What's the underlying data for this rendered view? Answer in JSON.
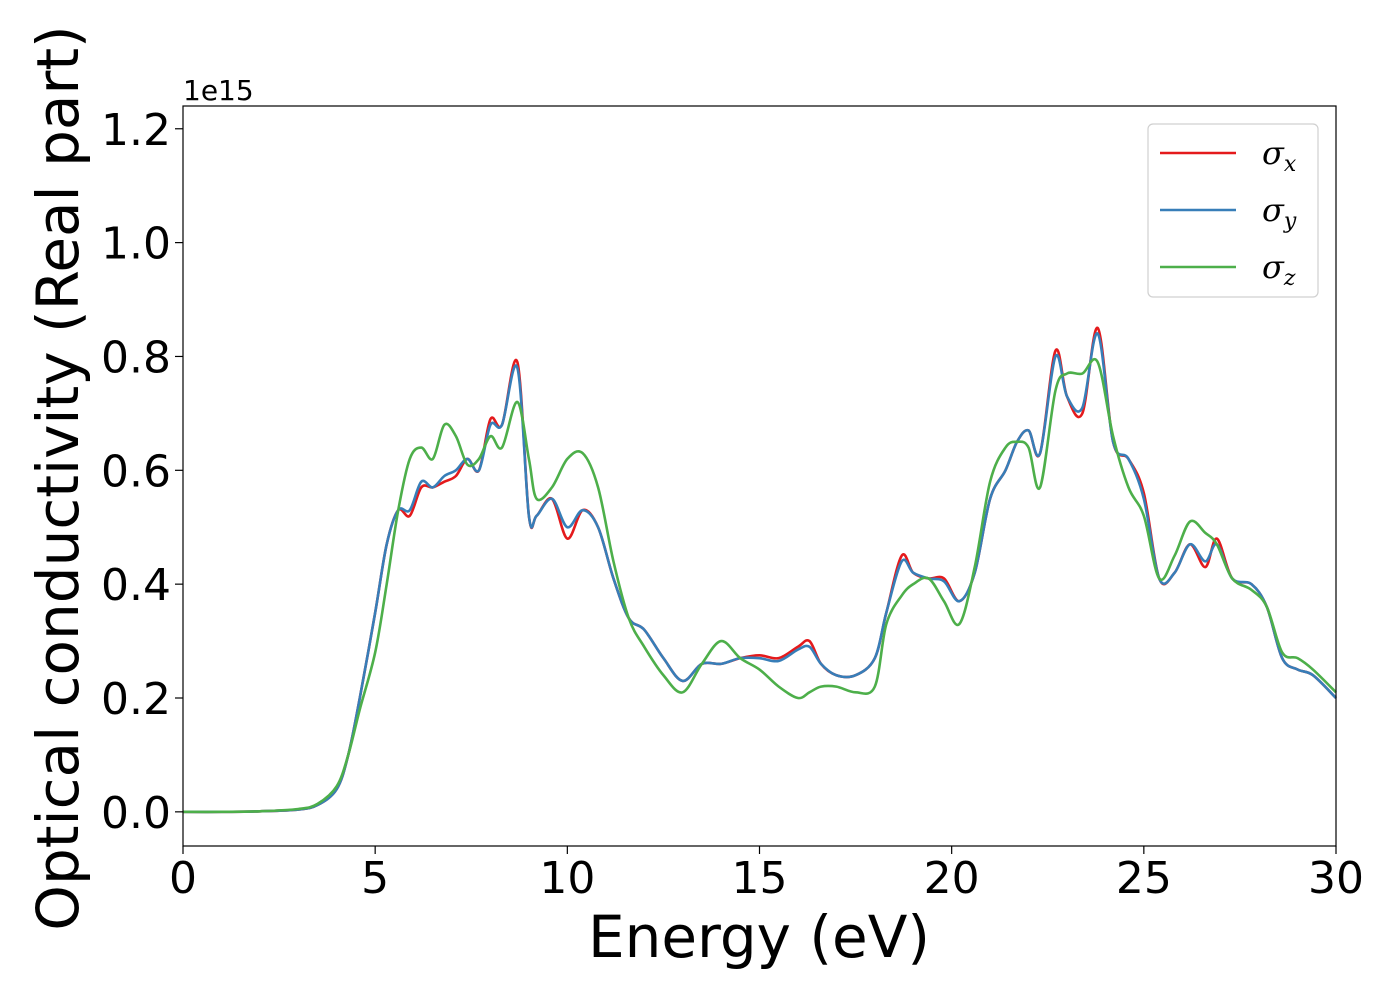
{
  "chart_data": {
    "type": "line",
    "title": "",
    "xlabel": "Energy (eV)",
    "ylabel": "Optical conductivity (Real part)",
    "y_offset_label": "1e15",
    "xlim": [
      0,
      30
    ],
    "ylim": [
      -0.06,
      1.24
    ],
    "x_ticks": [
      0,
      5,
      10,
      15,
      20,
      25,
      30
    ],
    "x_tick_labels": [
      "0",
      "5",
      "10",
      "15",
      "20",
      "25",
      "30"
    ],
    "y_ticks": [
      0.0,
      0.2,
      0.4,
      0.6,
      0.8,
      1.0,
      1.2
    ],
    "y_tick_labels": [
      "0.0",
      "0.2",
      "0.4",
      "0.6",
      "0.8",
      "1.0",
      "1.2"
    ],
    "grid": false,
    "legend_position": "top-right",
    "series": [
      {
        "name": "σx",
        "color": "#e41a1c",
        "x": [
          0,
          1,
          2,
          3,
          3.5,
          4,
          4.3,
          4.6,
          5,
          5.3,
          5.6,
          5.9,
          6.2,
          6.5,
          6.8,
          7.1,
          7.4,
          7.7,
          8.0,
          8.3,
          8.7,
          9.0,
          9.2,
          9.6,
          10.0,
          10.4,
          10.8,
          11.2,
          11.6,
          12.0,
          12.5,
          13.0,
          13.5,
          14.0,
          14.5,
          15.0,
          15.5,
          16.0,
          16.3,
          16.6,
          17.0,
          17.5,
          18.0,
          18.3,
          18.7,
          19.0,
          19.4,
          19.8,
          20.2,
          20.6,
          21.0,
          21.4,
          21.7,
          22.0,
          22.3,
          22.7,
          23.0,
          23.4,
          23.8,
          24.2,
          24.6,
          25.0,
          25.4,
          25.8,
          26.2,
          26.6,
          26.9,
          27.3,
          27.8,
          28.2,
          28.6,
          29.0,
          29.4,
          30.0
        ],
        "y": [
          0,
          0,
          0.001,
          0.004,
          0.012,
          0.04,
          0.1,
          0.2,
          0.35,
          0.47,
          0.53,
          0.52,
          0.57,
          0.57,
          0.58,
          0.59,
          0.62,
          0.6,
          0.69,
          0.68,
          0.79,
          0.52,
          0.52,
          0.55,
          0.48,
          0.53,
          0.5,
          0.41,
          0.34,
          0.32,
          0.27,
          0.23,
          0.26,
          0.26,
          0.27,
          0.275,
          0.27,
          0.29,
          0.3,
          0.26,
          0.24,
          0.24,
          0.27,
          0.35,
          0.45,
          0.42,
          0.41,
          0.41,
          0.37,
          0.42,
          0.55,
          0.6,
          0.65,
          0.67,
          0.63,
          0.81,
          0.73,
          0.7,
          0.85,
          0.65,
          0.62,
          0.56,
          0.41,
          0.42,
          0.47,
          0.43,
          0.48,
          0.41,
          0.4,
          0.36,
          0.27,
          0.25,
          0.24,
          0.2
        ]
      },
      {
        "name": "σy",
        "color": "#377eb8",
        "x": [
          0,
          1,
          2,
          3,
          3.5,
          4,
          4.3,
          4.6,
          5,
          5.3,
          5.6,
          5.9,
          6.2,
          6.5,
          6.8,
          7.1,
          7.4,
          7.7,
          8.0,
          8.3,
          8.7,
          9.0,
          9.2,
          9.6,
          10.0,
          10.4,
          10.8,
          11.2,
          11.6,
          12.0,
          12.5,
          13.0,
          13.5,
          14.0,
          14.5,
          15.0,
          15.5,
          16.0,
          16.3,
          16.6,
          17.0,
          17.5,
          18.0,
          18.3,
          18.7,
          19.0,
          19.4,
          19.8,
          20.2,
          20.6,
          21.0,
          21.4,
          21.7,
          22.0,
          22.3,
          22.7,
          23.0,
          23.4,
          23.8,
          24.2,
          24.6,
          25.0,
          25.4,
          25.8,
          26.2,
          26.6,
          26.9,
          27.3,
          27.8,
          28.2,
          28.6,
          29.0,
          29.4,
          30.0
        ],
        "y": [
          0,
          0,
          0.001,
          0.004,
          0.012,
          0.04,
          0.1,
          0.2,
          0.35,
          0.47,
          0.53,
          0.53,
          0.58,
          0.57,
          0.59,
          0.6,
          0.62,
          0.6,
          0.68,
          0.68,
          0.78,
          0.52,
          0.52,
          0.55,
          0.5,
          0.53,
          0.5,
          0.41,
          0.34,
          0.32,
          0.27,
          0.23,
          0.26,
          0.26,
          0.27,
          0.27,
          0.265,
          0.285,
          0.29,
          0.26,
          0.24,
          0.24,
          0.27,
          0.35,
          0.44,
          0.42,
          0.41,
          0.405,
          0.37,
          0.42,
          0.55,
          0.6,
          0.65,
          0.67,
          0.63,
          0.8,
          0.73,
          0.71,
          0.84,
          0.65,
          0.62,
          0.55,
          0.41,
          0.42,
          0.47,
          0.44,
          0.47,
          0.41,
          0.4,
          0.36,
          0.27,
          0.25,
          0.24,
          0.2
        ]
      },
      {
        "name": "σz",
        "color": "#4daf4a",
        "x": [
          0,
          1,
          2,
          3,
          3.5,
          4,
          4.3,
          4.6,
          5,
          5.3,
          5.6,
          5.9,
          6.2,
          6.5,
          6.8,
          7.1,
          7.4,
          7.7,
          8.0,
          8.3,
          8.7,
          9.0,
          9.2,
          9.6,
          10.0,
          10.4,
          10.8,
          11.2,
          11.6,
          12.0,
          12.5,
          13.0,
          13.5,
          14.0,
          14.5,
          15.0,
          15.5,
          16.0,
          16.3,
          16.6,
          17.0,
          17.5,
          18.0,
          18.3,
          18.7,
          19.0,
          19.4,
          19.8,
          20.2,
          20.6,
          21.0,
          21.4,
          21.7,
          22.0,
          22.3,
          22.7,
          23.0,
          23.4,
          23.8,
          24.2,
          24.6,
          25.0,
          25.4,
          25.8,
          26.2,
          26.6,
          26.9,
          27.3,
          27.8,
          28.2,
          28.6,
          29.0,
          29.4,
          30.0
        ],
        "y": [
          0,
          0,
          0.001,
          0.005,
          0.014,
          0.045,
          0.1,
          0.18,
          0.28,
          0.4,
          0.53,
          0.62,
          0.64,
          0.62,
          0.68,
          0.66,
          0.61,
          0.62,
          0.66,
          0.64,
          0.72,
          0.62,
          0.55,
          0.57,
          0.62,
          0.63,
          0.57,
          0.44,
          0.34,
          0.29,
          0.24,
          0.21,
          0.26,
          0.3,
          0.27,
          0.25,
          0.22,
          0.2,
          0.21,
          0.22,
          0.22,
          0.21,
          0.22,
          0.33,
          0.38,
          0.4,
          0.41,
          0.37,
          0.33,
          0.43,
          0.58,
          0.64,
          0.65,
          0.64,
          0.57,
          0.74,
          0.77,
          0.77,
          0.79,
          0.66,
          0.57,
          0.52,
          0.41,
          0.45,
          0.51,
          0.49,
          0.47,
          0.41,
          0.39,
          0.36,
          0.28,
          0.27,
          0.25,
          0.21
        ]
      }
    ],
    "legend_entries": [
      {
        "symbol": "σ",
        "subscript": "x",
        "color": "#e41a1c"
      },
      {
        "symbol": "σ",
        "subscript": "y",
        "color": "#377eb8"
      },
      {
        "symbol": "σ",
        "subscript": "z",
        "color": "#4daf4a"
      }
    ]
  }
}
